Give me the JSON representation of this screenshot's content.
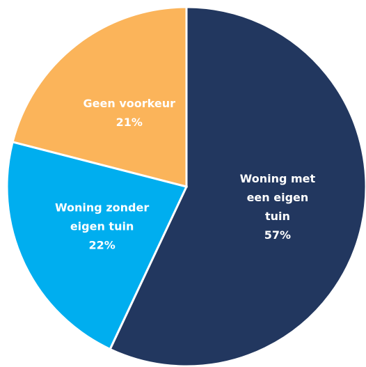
{
  "chart_data": {
    "type": "pie",
    "categories": [
      "Woning met een eigen tuin",
      "Woning zonder eigen tuin",
      "Geen voorkeur"
    ],
    "values": [
      57,
      22,
      21
    ],
    "value_labels": [
      "57%",
      "22%",
      "21%"
    ],
    "colors": [
      "#22375f",
      "#00aeef",
      "#fbb45a"
    ]
  }
}
